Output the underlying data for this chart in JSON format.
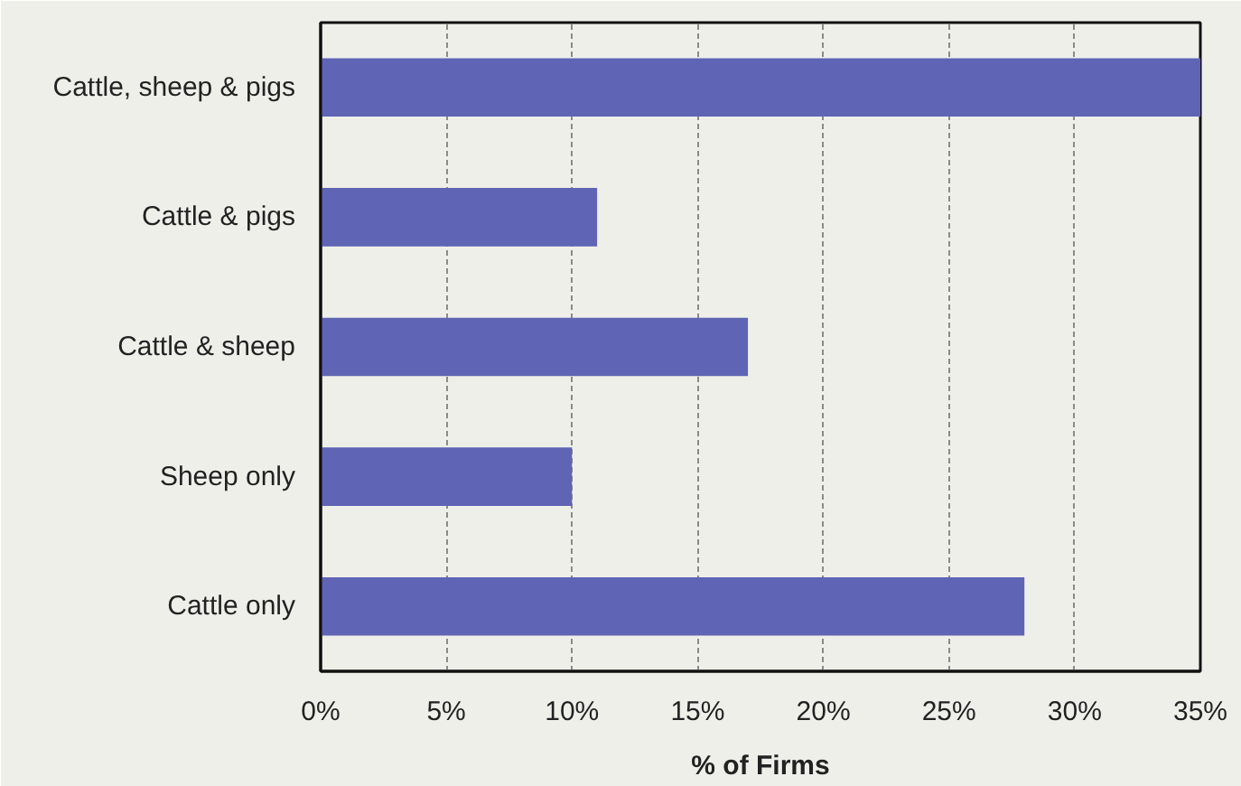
{
  "chart_data": {
    "type": "bar",
    "orientation": "horizontal",
    "xlabel": "% of Firms",
    "categories": [
      "Cattle, sheep & pigs",
      "Cattle & pigs",
      "Cattle & sheep",
      "Sheep only",
      "Cattle only"
    ],
    "values": [
      35,
      11,
      17,
      10,
      28
    ],
    "color": "#5f64b4",
    "xlim": [
      0,
      35
    ],
    "xticks": [
      {
        "value": 0,
        "label": "0%"
      },
      {
        "value": 5,
        "label": "5%"
      },
      {
        "value": 10,
        "label": "10%"
      },
      {
        "value": 15,
        "label": "15%"
      },
      {
        "value": 20,
        "label": "20%"
      },
      {
        "value": 25,
        "label": "25%"
      },
      {
        "value": 30,
        "label": "30%"
      },
      {
        "value": 35,
        "label": "35%"
      }
    ],
    "grid": "x"
  }
}
